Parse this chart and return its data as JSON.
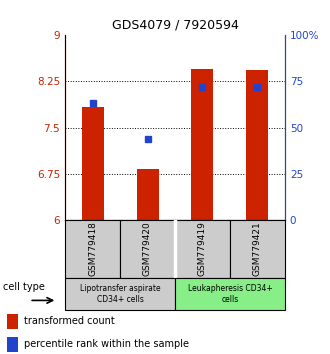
{
  "title": "GDS4079 / 7920594",
  "samples": [
    "GSM779418",
    "GSM779420",
    "GSM779419",
    "GSM779421"
  ],
  "red_values": [
    7.83,
    6.82,
    8.45,
    8.44
  ],
  "blue_percentiles": [
    63,
    44,
    72,
    72
  ],
  "ylim_left": [
    6,
    9
  ],
  "ylim_right": [
    0,
    100
  ],
  "yticks_left": [
    6,
    6.75,
    7.5,
    8.25,
    9
  ],
  "yticks_right": [
    0,
    25,
    50,
    75,
    100
  ],
  "ytick_labels_left": [
    "6",
    "6.75",
    "7.5",
    "8.25",
    "9"
  ],
  "ytick_labels_right": [
    "0",
    "25",
    "50",
    "75",
    "100%"
  ],
  "gridlines": [
    6.75,
    7.5,
    8.25
  ],
  "bar_color": "#cc2200",
  "dot_color": "#2244cc",
  "bar_width": 0.4,
  "group0_label": "Lipotransfer aspirate\nCD34+ cells",
  "group0_color": "#cccccc",
  "group1_label": "Leukapheresis CD34+\ncells",
  "group1_color": "#88ee88",
  "cell_type_label": "cell type",
  "legend_red": "transformed count",
  "legend_blue": "percentile rank within the sample",
  "left_axis_color": "#cc2200",
  "right_axis_color": "#2244cc",
  "title_fontsize": 9
}
